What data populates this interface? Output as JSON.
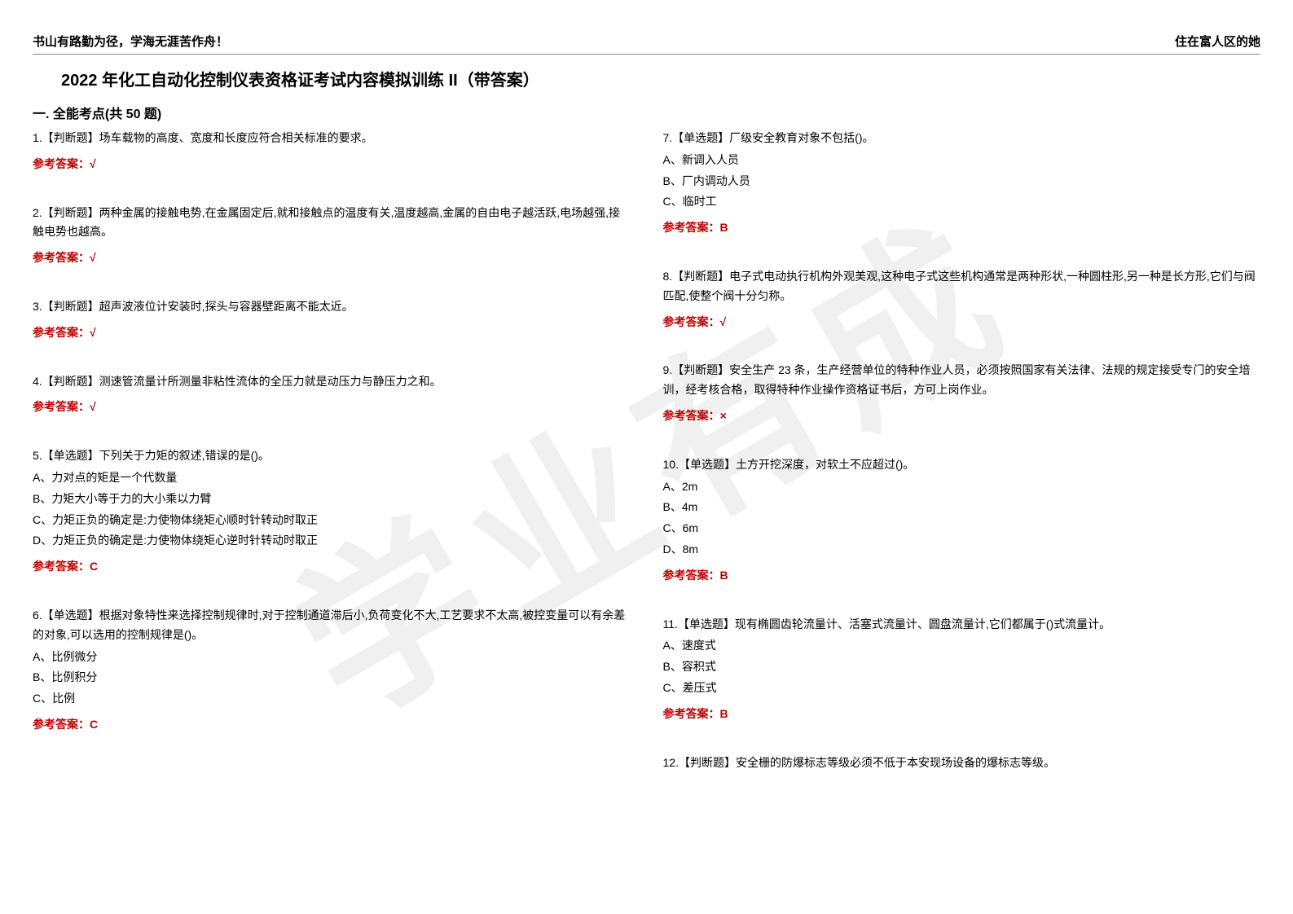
{
  "watermark": "学业有成",
  "header": {
    "left": "书山有路勤为径，学海无涯苦作舟！",
    "right": "住在富人区的她"
  },
  "title": "2022 年化工自动化控制仪表资格证考试内容模拟训练 II（带答案）",
  "section": "一. 全能考点(共 50 题)",
  "left_questions": [
    {
      "text": "1.【判断题】场车载物的高度、宽度和长度应符合相关标准的要求。",
      "options": [],
      "answer": "参考答案：√"
    },
    {
      "text": "2.【判断题】两种金属的接触电势,在金属固定后,就和接触点的温度有关,温度越高,金属的自由电子越活跃,电场越强,接触电势也越高。",
      "options": [],
      "answer": "参考答案：√"
    },
    {
      "text": "3.【判断题】超声波液位计安装时,探头与容器壁距离不能太近。",
      "options": [],
      "answer": "参考答案：√"
    },
    {
      "text": "4.【判断题】测速管流量计所测量非粘性流体的全压力就是动压力与静压力之和。",
      "options": [],
      "answer": "参考答案：√"
    },
    {
      "text": "5.【单选题】下列关于力矩的叙述,错误的是()。",
      "options": [
        "A、力对点的矩是一个代数量",
        "B、力矩大小等于力的大小乘以力臂",
        "C、力矩正负的确定是:力使物体绕矩心顺时针转动时取正",
        "D、力矩正负的确定是:力使物体绕矩心逆时针转动时取正"
      ],
      "answer": "参考答案：C"
    },
    {
      "text": "6.【单选题】根据对象特性来选择控制规律时,对于控制通道滞后小,负荷变化不大,工艺要求不太高,被控变量可以有余差的对象,可以选用的控制规律是()。",
      "options": [
        "A、比例微分",
        "B、比例积分",
        "C、比例"
      ],
      "answer": "参考答案：C"
    }
  ],
  "right_questions": [
    {
      "text": "7.【单选题】厂级安全教育对象不包括()。",
      "options": [
        "A、新调入人员",
        "B、厂内调动人员",
        "C、临时工"
      ],
      "answer": "参考答案：B"
    },
    {
      "text": "8.【判断题】电子式电动执行机构外观美观,这种电子式这些机构通常是两种形状,一种圆柱形,另一种是长方形,它们与阀匹配,使整个阀十分匀称。",
      "options": [],
      "answer": "参考答案：√"
    },
    {
      "text": "9.【判断题】安全生产 23 条，生产经营单位的特种作业人员，必须按照国家有关法律、法规的规定接受专门的安全培训，经考核合格，取得特种作业操作资格证书后，方可上岗作业。",
      "options": [],
      "answer": "参考答案：×"
    },
    {
      "text": "10.【单选题】土方开挖深度，对软土不应超过()。",
      "options": [
        "A、2m",
        "B、4m",
        "C、6m",
        "D、8m"
      ],
      "answer": "参考答案：B"
    },
    {
      "text": "11.【单选题】现有椭圆齿轮流量计、活塞式流量计、圆盘流量计,它们都属于()式流量计。",
      "options": [
        "A、速度式",
        "B、容积式",
        "C、差压式"
      ],
      "answer": "参考答案：B"
    },
    {
      "text": "12.【判断题】安全栅的防爆标志等级必须不低于本安现场设备的爆标志等级。",
      "options": [],
      "answer": ""
    }
  ]
}
